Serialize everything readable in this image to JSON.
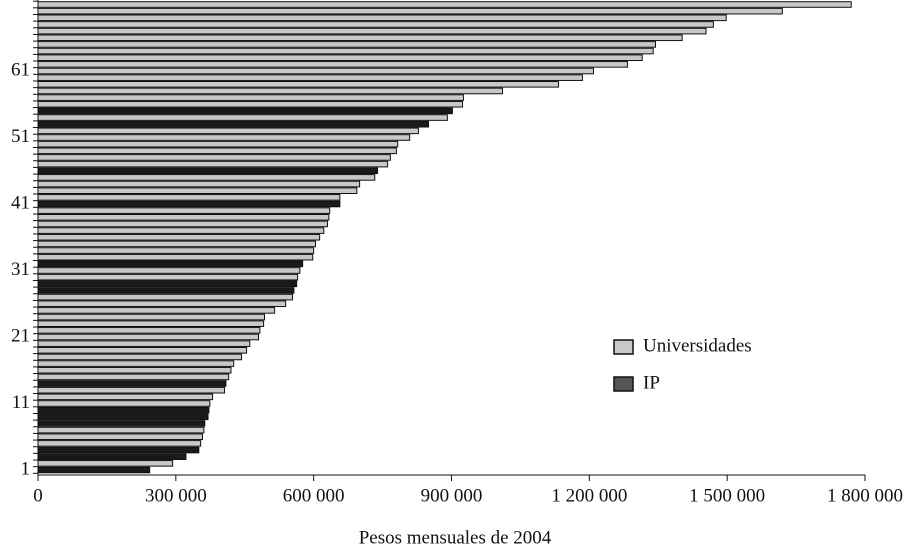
{
  "chart_data": {
    "type": "barh",
    "xlabel": "Pesos mensuales de 2004",
    "categories": [
      "1",
      null,
      null,
      null,
      null,
      null,
      null,
      null,
      null,
      null,
      "11",
      null,
      null,
      null,
      null,
      null,
      null,
      null,
      null,
      null,
      "21",
      null,
      null,
      null,
      null,
      null,
      null,
      null,
      null,
      null,
      "31",
      null,
      null,
      null,
      null,
      null,
      null,
      null,
      null,
      null,
      "41",
      null,
      null,
      null,
      null,
      null,
      null,
      null,
      null,
      null,
      "51",
      null,
      null,
      null,
      null,
      null,
      null,
      null,
      null,
      null,
      "61",
      null,
      null,
      null,
      null,
      null,
      null,
      null,
      null,
      null,
      null
    ],
    "series": [
      {
        "name": "Universidades",
        "color": "#c8c8c8",
        "values": [
          null,
          293000,
          null,
          null,
          354000,
          358000,
          361000,
          null,
          null,
          null,
          374000,
          380000,
          406000,
          null,
          415000,
          420000,
          426000,
          443000,
          454000,
          461000,
          480000,
          483000,
          491000,
          493000,
          515000,
          539000,
          554000,
          null,
          null,
          565000,
          570000,
          null,
          598000,
          600000,
          604000,
          613000,
          622000,
          630000,
          633000,
          635000,
          null,
          657000,
          694000,
          700000,
          733000,
          null,
          761000,
          767000,
          780000,
          783000,
          809000,
          828000,
          null,
          891000,
          null,
          924000,
          926000,
          1011000,
          1133000,
          1185000,
          1209000,
          1283000,
          1315000,
          1339000,
          1344000,
          1402000,
          1454000,
          1470000,
          1498000,
          1620000,
          1770000
        ]
      },
      {
        "name": "IP",
        "color": "#1a1a1a",
        "values": [
          243000,
          null,
          322000,
          350000,
          null,
          null,
          null,
          363000,
          370000,
          372000,
          null,
          null,
          null,
          409000,
          null,
          null,
          null,
          null,
          null,
          null,
          null,
          null,
          null,
          null,
          null,
          null,
          null,
          557000,
          563000,
          null,
          null,
          576000,
          null,
          null,
          null,
          null,
          null,
          null,
          null,
          null,
          657000,
          null,
          null,
          null,
          null,
          739000,
          null,
          null,
          null,
          null,
          null,
          null,
          850000,
          null,
          902000,
          null,
          null,
          null,
          null,
          null,
          null,
          null,
          null,
          null,
          null,
          null,
          null,
          null,
          null,
          null,
          null
        ]
      }
    ],
    "xlim": [
      0,
      1800000
    ],
    "xticks": [
      0,
      {
        "value": 300000,
        "label": "300 000"
      },
      {
        "value": 600000,
        "label": "600 000"
      },
      {
        "value": 900000,
        "label": "900 000"
      },
      {
        "value": 1200000,
        "label": "1 200 000"
      },
      {
        "value": 1500000,
        "label": "1 500 000"
      },
      {
        "value": 1800000,
        "label": "1 800 000"
      }
    ],
    "legend": "right"
  }
}
